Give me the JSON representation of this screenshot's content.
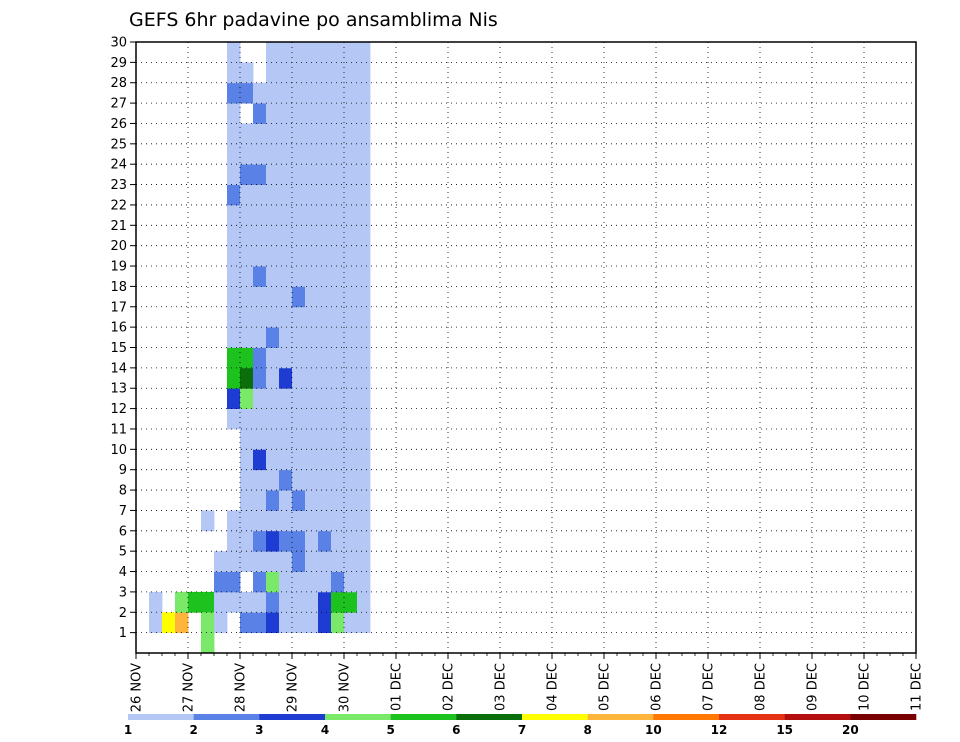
{
  "chart_data": {
    "type": "heatmap",
    "title": "GEFS 6hr padavine po ansamblima Nis",
    "y_categories": [
      "1",
      "2",
      "3",
      "4",
      "5",
      "6",
      "7",
      "8",
      "9",
      "10",
      "11",
      "12",
      "13",
      "14",
      "15",
      "16",
      "17",
      "18",
      "19",
      "20",
      "21",
      "22",
      "23",
      "24",
      "25",
      "26",
      "27",
      "28",
      "29",
      "30"
    ],
    "x_labels": [
      "26 NOV",
      "27 NOV",
      "28 NOV",
      "29 NOV",
      "30 NOV",
      "01 DEC",
      "02 DEC",
      "03 DEC",
      "04 DEC",
      "05 DEC",
      "06 DEC",
      "07 DEC",
      "08 DEC",
      "09 DEC",
      "10 DEC",
      "11 DEC"
    ],
    "time_steps_per_day": 4,
    "time_step_count": 60,
    "legend": {
      "labels": [
        "1",
        "2",
        "3",
        "4",
        "5",
        "6",
        "7",
        "8",
        "10",
        "12",
        "15",
        "20"
      ],
      "colors": [
        "#b4c7f5",
        "#5a82e6",
        "#1e3cd2",
        "#7ae868",
        "#1ec21e",
        "#0a6e0a",
        "#ffff00",
        "#ffb43c",
        "#ff7800",
        "#e63214",
        "#b40f0f",
        "#780000"
      ]
    },
    "grid": true,
    "cells": [
      [
        1,
        1,
        0
      ],
      [
        1,
        2,
        0
      ],
      [
        2,
        1,
        6
      ],
      [
        3,
        1,
        7
      ],
      [
        3,
        2,
        3
      ],
      [
        4,
        2,
        4
      ],
      [
        5,
        2,
        4
      ],
      [
        5,
        0,
        3
      ],
      [
        5,
        1,
        3
      ],
      [
        5,
        6,
        0
      ],
      [
        6,
        1,
        0
      ],
      [
        6,
        2,
        0
      ],
      [
        6,
        3,
        1
      ],
      [
        6,
        4,
        0
      ],
      [
        7,
        2,
        0
      ],
      [
        7,
        3,
        1
      ],
      [
        7,
        4,
        0
      ],
      [
        7,
        5,
        0
      ],
      [
        7,
        6,
        0
      ],
      [
        7,
        11,
        0
      ],
      [
        7,
        12,
        2
      ],
      [
        7,
        13,
        4
      ],
      [
        7,
        14,
        4
      ],
      [
        7,
        15,
        0
      ],
      [
        7,
        16,
        0
      ],
      [
        7,
        17,
        0
      ],
      [
        7,
        18,
        0
      ],
      [
        7,
        19,
        0
      ],
      [
        7,
        20,
        0
      ],
      [
        7,
        21,
        0
      ],
      [
        7,
        22,
        1
      ],
      [
        7,
        23,
        0
      ],
      [
        7,
        24,
        0
      ],
      [
        7,
        25,
        0
      ],
      [
        7,
        26,
        0
      ],
      [
        7,
        27,
        1
      ],
      [
        7,
        28,
        0
      ],
      [
        7,
        29,
        0
      ],
      [
        8,
        1,
        1
      ],
      [
        8,
        2,
        0
      ],
      [
        8,
        4,
        0
      ],
      [
        8,
        5,
        0
      ],
      [
        8,
        6,
        0
      ],
      [
        8,
        7,
        0
      ],
      [
        8,
        8,
        0
      ],
      [
        8,
        9,
        0
      ],
      [
        8,
        10,
        0
      ],
      [
        8,
        11,
        0
      ],
      [
        8,
        12,
        3
      ],
      [
        8,
        13,
        5
      ],
      [
        8,
        14,
        4
      ],
      [
        8,
        15,
        0
      ],
      [
        8,
        16,
        0
      ],
      [
        8,
        17,
        0
      ],
      [
        8,
        18,
        0
      ],
      [
        8,
        19,
        0
      ],
      [
        8,
        20,
        0
      ],
      [
        8,
        21,
        0
      ],
      [
        8,
        22,
        0
      ],
      [
        8,
        23,
        1
      ],
      [
        8,
        24,
        0
      ],
      [
        8,
        25,
        0
      ],
      [
        8,
        27,
        1
      ],
      [
        8,
        28,
        0
      ],
      [
        9,
        1,
        1
      ],
      [
        9,
        2,
        0
      ],
      [
        9,
        3,
        1
      ],
      [
        9,
        4,
        0
      ],
      [
        9,
        5,
        1
      ],
      [
        9,
        6,
        0
      ],
      [
        9,
        7,
        0
      ],
      [
        9,
        8,
        0
      ],
      [
        9,
        9,
        2
      ],
      [
        9,
        10,
        0
      ],
      [
        9,
        11,
        0
      ],
      [
        9,
        12,
        0
      ],
      [
        9,
        13,
        1
      ],
      [
        9,
        14,
        1
      ],
      [
        9,
        15,
        0
      ],
      [
        9,
        16,
        0
      ],
      [
        9,
        17,
        0
      ],
      [
        9,
        18,
        1
      ],
      [
        9,
        19,
        0
      ],
      [
        9,
        20,
        0
      ],
      [
        9,
        21,
        0
      ],
      [
        9,
        22,
        0
      ],
      [
        9,
        23,
        1
      ],
      [
        9,
        24,
        0
      ],
      [
        9,
        25,
        0
      ],
      [
        9,
        26,
        1
      ],
      [
        9,
        27,
        0
      ],
      [
        10,
        1,
        2
      ],
      [
        10,
        2,
        1
      ],
      [
        10,
        3,
        3
      ],
      [
        10,
        4,
        0
      ],
      [
        10,
        5,
        2
      ],
      [
        10,
        6,
        0
      ],
      [
        10,
        7,
        1
      ],
      [
        10,
        8,
        0
      ],
      [
        10,
        9,
        0
      ],
      [
        10,
        10,
        0
      ],
      [
        10,
        11,
        0
      ],
      [
        10,
        12,
        0
      ],
      [
        10,
        13,
        0
      ],
      [
        10,
        14,
        0
      ],
      [
        10,
        15,
        1
      ],
      [
        10,
        16,
        0
      ],
      [
        10,
        17,
        0
      ],
      [
        10,
        18,
        0
      ],
      [
        10,
        19,
        0
      ],
      [
        10,
        20,
        0
      ],
      [
        10,
        21,
        0
      ],
      [
        10,
        22,
        0
      ],
      [
        10,
        23,
        0
      ],
      [
        10,
        24,
        0
      ],
      [
        10,
        25,
        0
      ],
      [
        10,
        26,
        0
      ],
      [
        10,
        27,
        0
      ],
      [
        10,
        28,
        0
      ],
      [
        10,
        29,
        0
      ],
      [
        11,
        1,
        0
      ],
      [
        11,
        2,
        0
      ],
      [
        11,
        3,
        0
      ],
      [
        11,
        4,
        0
      ],
      [
        11,
        5,
        1
      ],
      [
        11,
        6,
        0
      ],
      [
        11,
        7,
        0
      ],
      [
        11,
        8,
        1
      ],
      [
        11,
        9,
        0
      ],
      [
        11,
        10,
        0
      ],
      [
        11,
        11,
        0
      ],
      [
        11,
        12,
        0
      ],
      [
        11,
        13,
        2
      ],
      [
        11,
        14,
        0
      ],
      [
        11,
        15,
        0
      ],
      [
        11,
        16,
        0
      ],
      [
        11,
        17,
        0
      ],
      [
        11,
        18,
        0
      ],
      [
        11,
        19,
        0
      ],
      [
        11,
        20,
        0
      ],
      [
        11,
        21,
        0
      ],
      [
        11,
        22,
        0
      ],
      [
        11,
        23,
        0
      ],
      [
        11,
        24,
        0
      ],
      [
        11,
        25,
        0
      ],
      [
        11,
        26,
        0
      ],
      [
        11,
        27,
        0
      ],
      [
        11,
        28,
        0
      ],
      [
        11,
        29,
        0
      ],
      [
        12,
        1,
        0
      ],
      [
        12,
        2,
        0
      ],
      [
        12,
        3,
        0
      ],
      [
        12,
        4,
        1
      ],
      [
        12,
        5,
        1
      ],
      [
        12,
        6,
        0
      ],
      [
        12,
        7,
        1
      ],
      [
        12,
        8,
        0
      ],
      [
        12,
        9,
        0
      ],
      [
        12,
        10,
        0
      ],
      [
        12,
        11,
        0
      ],
      [
        12,
        12,
        0
      ],
      [
        12,
        13,
        0
      ],
      [
        12,
        14,
        0
      ],
      [
        12,
        15,
        0
      ],
      [
        12,
        16,
        0
      ],
      [
        12,
        17,
        1
      ],
      [
        12,
        18,
        0
      ],
      [
        12,
        19,
        0
      ],
      [
        12,
        20,
        0
      ],
      [
        12,
        21,
        0
      ],
      [
        12,
        22,
        0
      ],
      [
        12,
        23,
        0
      ],
      [
        12,
        24,
        0
      ],
      [
        12,
        25,
        0
      ],
      [
        12,
        26,
        0
      ],
      [
        12,
        27,
        0
      ],
      [
        12,
        28,
        0
      ],
      [
        12,
        29,
        0
      ],
      [
        13,
        1,
        0
      ],
      [
        13,
        2,
        0
      ],
      [
        13,
        3,
        0
      ],
      [
        13,
        4,
        0
      ],
      [
        13,
        5,
        0
      ],
      [
        13,
        6,
        0
      ],
      [
        13,
        7,
        0
      ],
      [
        13,
        8,
        0
      ],
      [
        13,
        9,
        0
      ],
      [
        13,
        10,
        0
      ],
      [
        13,
        11,
        0
      ],
      [
        13,
        12,
        0
      ],
      [
        13,
        13,
        0
      ],
      [
        13,
        14,
        0
      ],
      [
        13,
        15,
        0
      ],
      [
        13,
        16,
        0
      ],
      [
        13,
        17,
        0
      ],
      [
        13,
        18,
        0
      ],
      [
        13,
        19,
        0
      ],
      [
        13,
        20,
        0
      ],
      [
        13,
        21,
        0
      ],
      [
        13,
        22,
        0
      ],
      [
        13,
        23,
        0
      ],
      [
        13,
        24,
        0
      ],
      [
        13,
        25,
        0
      ],
      [
        13,
        26,
        0
      ],
      [
        13,
        27,
        0
      ],
      [
        13,
        28,
        0
      ],
      [
        13,
        29,
        0
      ],
      [
        14,
        1,
        2
      ],
      [
        14,
        2,
        2
      ],
      [
        14,
        3,
        0
      ],
      [
        14,
        4,
        0
      ],
      [
        14,
        5,
        1
      ],
      [
        14,
        6,
        0
      ],
      [
        14,
        7,
        0
      ],
      [
        14,
        8,
        0
      ],
      [
        14,
        9,
        0
      ],
      [
        14,
        10,
        0
      ],
      [
        14,
        11,
        0
      ],
      [
        14,
        12,
        0
      ],
      [
        14,
        13,
        0
      ],
      [
        14,
        14,
        0
      ],
      [
        14,
        15,
        0
      ],
      [
        14,
        16,
        0
      ],
      [
        14,
        17,
        0
      ],
      [
        14,
        18,
        0
      ],
      [
        14,
        19,
        0
      ],
      [
        14,
        20,
        0
      ],
      [
        14,
        21,
        0
      ],
      [
        14,
        22,
        0
      ],
      [
        14,
        23,
        0
      ],
      [
        14,
        24,
        0
      ],
      [
        14,
        25,
        0
      ],
      [
        14,
        26,
        0
      ],
      [
        14,
        27,
        0
      ],
      [
        14,
        28,
        0
      ],
      [
        14,
        29,
        0
      ],
      [
        15,
        1,
        3
      ],
      [
        15,
        2,
        4
      ],
      [
        15,
        3,
        1
      ],
      [
        15,
        4,
        0
      ],
      [
        15,
        5,
        0
      ],
      [
        15,
        6,
        0
      ],
      [
        15,
        7,
        0
      ],
      [
        15,
        8,
        0
      ],
      [
        15,
        9,
        0
      ],
      [
        15,
        10,
        0
      ],
      [
        15,
        11,
        0
      ],
      [
        15,
        12,
        0
      ],
      [
        15,
        13,
        0
      ],
      [
        15,
        14,
        0
      ],
      [
        15,
        15,
        0
      ],
      [
        15,
        16,
        0
      ],
      [
        15,
        17,
        0
      ],
      [
        15,
        18,
        0
      ],
      [
        15,
        19,
        0
      ],
      [
        15,
        20,
        0
      ],
      [
        15,
        21,
        0
      ],
      [
        15,
        22,
        0
      ],
      [
        15,
        23,
        0
      ],
      [
        15,
        24,
        0
      ],
      [
        15,
        25,
        0
      ],
      [
        15,
        26,
        0
      ],
      [
        15,
        27,
        0
      ],
      [
        15,
        28,
        0
      ],
      [
        15,
        29,
        0
      ],
      [
        16,
        1,
        0
      ],
      [
        16,
        2,
        4
      ],
      [
        16,
        3,
        0
      ],
      [
        16,
        4,
        0
      ],
      [
        16,
        5,
        0
      ],
      [
        16,
        6,
        0
      ],
      [
        16,
        7,
        0
      ],
      [
        16,
        8,
        0
      ],
      [
        16,
        9,
        0
      ],
      [
        16,
        10,
        0
      ],
      [
        16,
        11,
        0
      ],
      [
        16,
        12,
        0
      ],
      [
        16,
        13,
        0
      ],
      [
        16,
        14,
        0
      ],
      [
        16,
        15,
        0
      ],
      [
        16,
        16,
        0
      ],
      [
        16,
        17,
        0
      ],
      [
        16,
        18,
        0
      ],
      [
        16,
        19,
        0
      ],
      [
        16,
        20,
        0
      ],
      [
        16,
        21,
        0
      ],
      [
        16,
        22,
        0
      ],
      [
        16,
        23,
        0
      ],
      [
        16,
        24,
        0
      ],
      [
        16,
        25,
        0
      ],
      [
        16,
        26,
        0
      ],
      [
        16,
        27,
        0
      ],
      [
        16,
        28,
        0
      ],
      [
        16,
        29,
        0
      ],
      [
        17,
        1,
        0
      ],
      [
        17,
        2,
        0
      ],
      [
        17,
        3,
        0
      ],
      [
        17,
        4,
        0
      ],
      [
        17,
        5,
        0
      ],
      [
        17,
        6,
        0
      ],
      [
        17,
        7,
        0
      ],
      [
        17,
        8,
        0
      ],
      [
        17,
        9,
        0
      ],
      [
        17,
        10,
        0
      ],
      [
        17,
        11,
        0
      ],
      [
        17,
        12,
        0
      ],
      [
        17,
        13,
        0
      ],
      [
        17,
        14,
        0
      ],
      [
        17,
        15,
        0
      ],
      [
        17,
        16,
        0
      ],
      [
        17,
        17,
        0
      ],
      [
        17,
        18,
        0
      ],
      [
        17,
        19,
        0
      ],
      [
        17,
        20,
        0
      ],
      [
        17,
        21,
        0
      ],
      [
        17,
        22,
        0
      ],
      [
        17,
        23,
        0
      ],
      [
        17,
        24,
        0
      ],
      [
        17,
        25,
        0
      ],
      [
        17,
        26,
        0
      ],
      [
        17,
        27,
        0
      ],
      [
        17,
        28,
        0
      ],
      [
        17,
        29,
        0
      ]
    ],
    "cells_note": "[time_step_index, member_index(0=member 1), color_index]"
  }
}
